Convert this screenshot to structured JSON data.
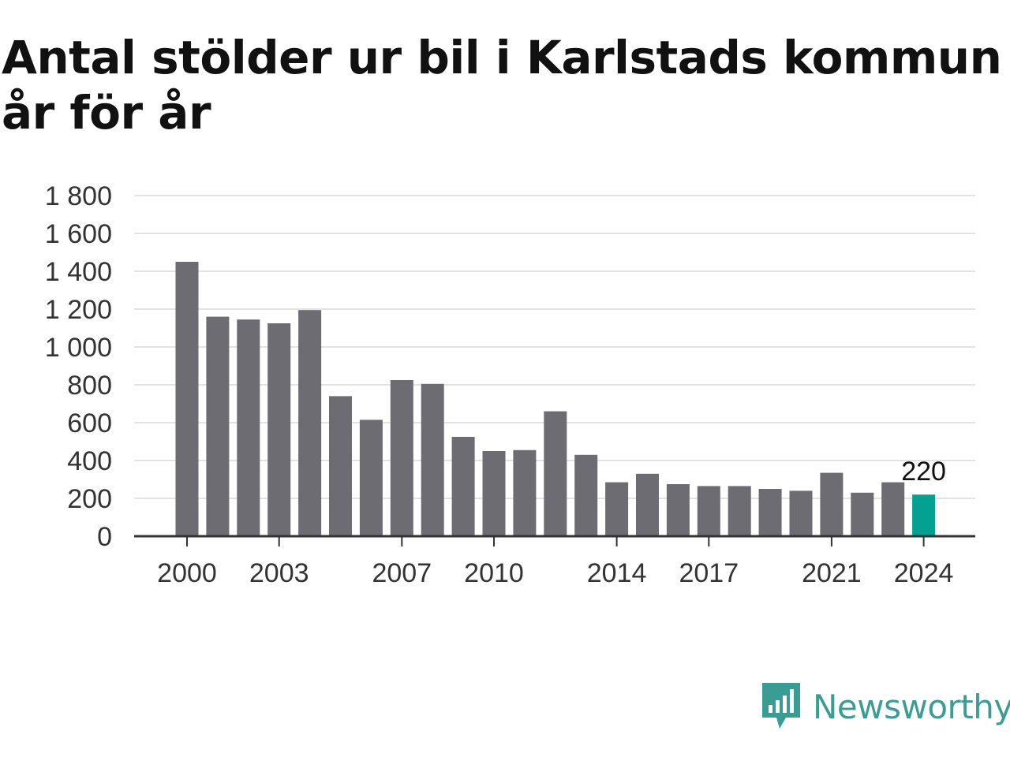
{
  "title": "Antal stölder ur bil i Karlstads kommun år för år",
  "brand": {
    "name": "Newsworthy",
    "color": "#3a9d94",
    "icon": "newsworthy-logo-icon"
  },
  "colors": {
    "bar": "#6d6c72",
    "highlight": "#03a192",
    "grid": "#e3e3e3",
    "axis": "#333333"
  },
  "chart_data": {
    "type": "bar",
    "title": "Antal stölder ur bil i Karlstads kommun år för år",
    "xlabel": "",
    "ylabel": "",
    "categories": [
      "2000",
      "2001",
      "2002",
      "2003",
      "2004",
      "2005",
      "2006",
      "2007",
      "2008",
      "2009",
      "2010",
      "2011",
      "2012",
      "2013",
      "2014",
      "2015",
      "2016",
      "2017",
      "2018",
      "2019",
      "2020",
      "2021",
      "2022",
      "2023",
      "2024"
    ],
    "values": [
      1450,
      1160,
      1145,
      1125,
      1195,
      740,
      615,
      825,
      805,
      525,
      450,
      455,
      660,
      430,
      285,
      330,
      275,
      265,
      265,
      250,
      240,
      335,
      230,
      285,
      220
    ],
    "highlight_index": 24,
    "data_labels": [
      {
        "category": "2024",
        "text": "220"
      }
    ],
    "x_tick_labels": [
      "2000",
      "2003",
      "2007",
      "2010",
      "2014",
      "2017",
      "2021",
      "2024"
    ],
    "y_ticks": [
      0,
      200,
      400,
      600,
      800,
      1000,
      1200,
      1400,
      1600,
      1800
    ],
    "y_tick_labels": [
      "0",
      "200",
      "400",
      "600",
      "800",
      "1 000",
      "1 200",
      "1 400",
      "1 600",
      "1 800"
    ],
    "ylim": [
      0,
      1800
    ],
    "grid": true,
    "legend": "none"
  }
}
